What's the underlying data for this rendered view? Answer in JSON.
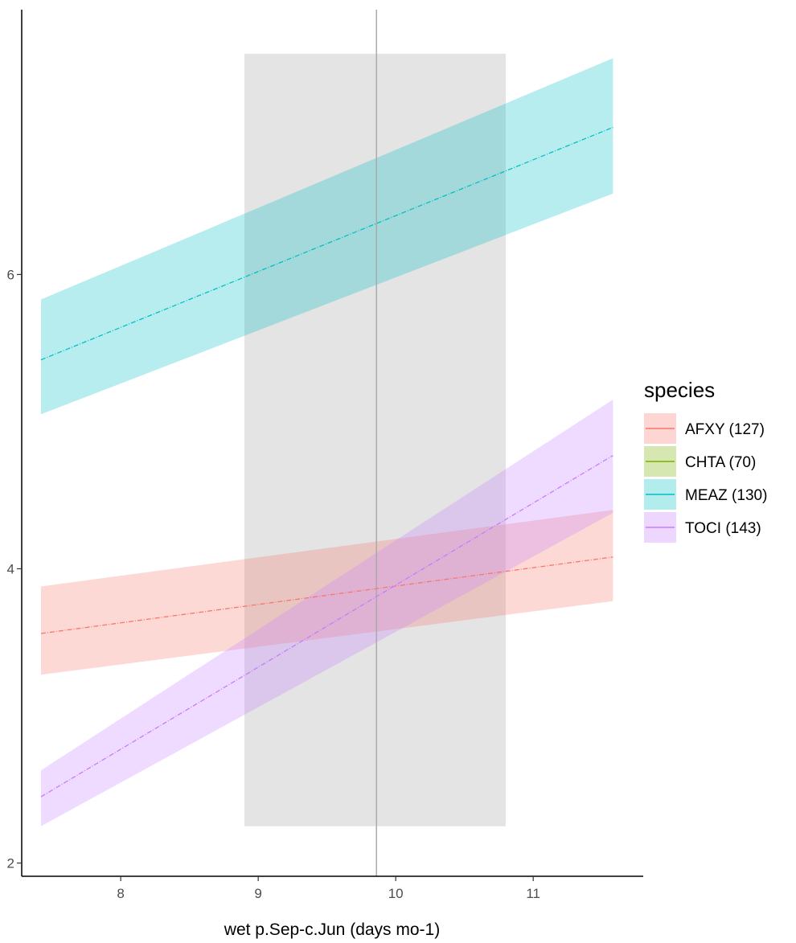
{
  "chart_data": {
    "type": "line",
    "title": "",
    "xlabel": "wet p.Sep-c.Jun (days mo-1)",
    "ylabel": "",
    "xlim": [
      7.28,
      11.8
    ],
    "ylim": [
      1.91,
      7.8
    ],
    "x_ticks": [
      8,
      9,
      10,
      11
    ],
    "y_ticks": [
      2,
      4,
      6
    ],
    "x_tick_labels": [
      "8",
      "9",
      "10",
      "11"
    ],
    "y_tick_labels": [
      "2",
      "4",
      "6"
    ],
    "grid": false,
    "shaded_region": {
      "x": [
        8.9,
        10.8
      ],
      "y": [
        2.25,
        7.5
      ]
    },
    "reference_line_x": 9.86,
    "legend": {
      "title": "species",
      "position": "right"
    },
    "series": [
      {
        "name": "AFXY (127)",
        "color": "#F8766D",
        "x": [
          7.42,
          11.58
        ],
        "y": [
          3.56,
          4.08
        ],
        "lower": [
          3.28,
          3.78
        ],
        "upper": [
          3.88,
          4.4
        ]
      },
      {
        "name": "CHTA (70)",
        "color": "#7CAE00",
        "x": [],
        "y": [],
        "lower": [],
        "upper": []
      },
      {
        "name": "MEAZ (130)",
        "color": "#00BFC4",
        "x": [
          7.42,
          11.58
        ],
        "y": [
          5.42,
          7.0
        ],
        "lower": [
          5.05,
          6.55
        ],
        "upper": [
          5.83,
          7.47
        ]
      },
      {
        "name": "TOCI (143)",
        "color": "#C77CFF",
        "x": [
          7.42,
          11.58
        ],
        "y": [
          2.45,
          4.77
        ],
        "lower": [
          2.25,
          4.38
        ],
        "upper": [
          2.63,
          5.15
        ]
      }
    ]
  }
}
